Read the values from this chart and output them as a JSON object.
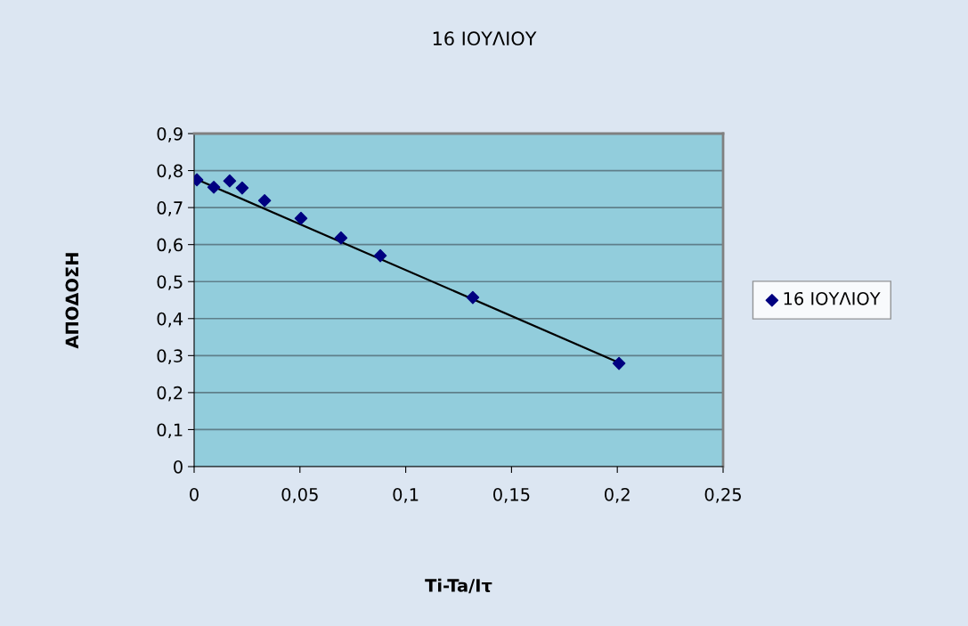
{
  "chart_data": {
    "type": "scatter",
    "title": "16 ΙΟΥΛΙΟΥ",
    "xlabel": "Ti-Ta/Iτ",
    "ylabel": "ΑΠΟΔΟΣΗ",
    "series": [
      {
        "name": "16 ΙΟΥΛΙΟΥ",
        "color": "#000080",
        "marker": "diamond",
        "x": [
          0.0013,
          0.0093,
          0.0168,
          0.0227,
          0.0333,
          0.0505,
          0.0694,
          0.088,
          0.1317,
          0.2008
        ],
        "values": [
          0.775,
          0.755,
          0.772,
          0.753,
          0.719,
          0.671,
          0.618,
          0.57,
          0.457,
          0.279
        ]
      },
      {
        "type": "line",
        "color": "#000000",
        "x": [
          0.0013,
          0.2008
        ],
        "values": [
          0.776,
          0.281
        ]
      }
    ],
    "xlim": [
      0,
      0.25
    ],
    "ylim": [
      0,
      0.9
    ],
    "xticks": [
      0,
      {
        "value": 0.05,
        "label": "0,05"
      },
      {
        "value": 0.1,
        "label": "0,1"
      },
      {
        "value": 0.15,
        "label": "0,15"
      },
      {
        "value": 0.2,
        "label": "0,2"
      },
      {
        "value": 0.25,
        "label": "0,25"
      }
    ],
    "yticks": [
      0,
      {
        "value": 0.1,
        "label": "0,1"
      },
      {
        "value": 0.2,
        "label": "0,2"
      },
      {
        "value": 0.3,
        "label": "0,3"
      },
      {
        "value": 0.4,
        "label": "0,4"
      },
      {
        "value": 0.5,
        "label": "0,5"
      },
      {
        "value": 0.6,
        "label": "0,6"
      },
      {
        "value": 0.7,
        "label": "0,7"
      },
      {
        "value": 0.8,
        "label": "0,8"
      },
      {
        "value": 0.9,
        "label": "0,9"
      }
    ],
    "grid": "y",
    "legend": "right"
  }
}
